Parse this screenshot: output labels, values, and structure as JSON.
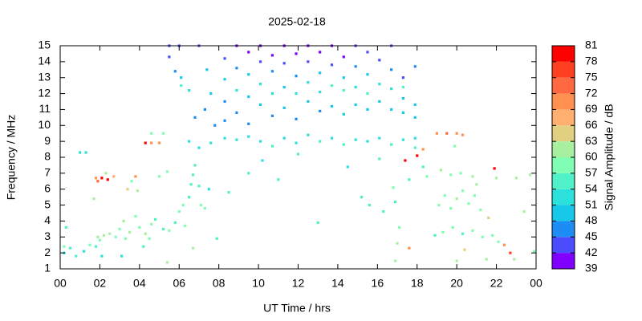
{
  "chart_data": {
    "type": "scatter",
    "title": "2025-02-18",
    "x_label": "UT Time / hrs",
    "y_label": "Frequency / MHz",
    "colorbar_label": "Signal Amplitude / dB",
    "xlim": [
      0,
      24
    ],
    "xticks": [
      {
        "value": 0,
        "label": "00"
      },
      {
        "value": 2,
        "label": "02"
      },
      {
        "value": 4,
        "label": "04"
      },
      {
        "value": 6,
        "label": "06"
      },
      {
        "value": 8,
        "label": "08"
      },
      10,
      12,
      14,
      16,
      18,
      20,
      22,
      {
        "value": 24,
        "label": "00"
      }
    ],
    "ylim": [
      1,
      15
    ],
    "yticks": [
      1,
      2,
      3,
      4,
      5,
      6,
      7,
      8,
      9,
      10,
      11,
      12,
      13,
      14,
      15
    ],
    "clim": [
      39,
      81
    ],
    "cticks": [
      39,
      42,
      45,
      48,
      51,
      54,
      57,
      60,
      63,
      66,
      69,
      72,
      75,
      78,
      81
    ],
    "colors": [
      "#8000ff",
      "#4c4cff",
      "#1e8cf5",
      "#18c8e8",
      "#2ce0dc",
      "#50f0c8",
      "#80ffb4",
      "#a8f0a0",
      "#e0d080",
      "#ffb070",
      "#ff9050",
      "#ff6840",
      "#ff4020",
      "#ff0000"
    ],
    "x": [
      0.2,
      0.5,
      0.8,
      1.2,
      1.5,
      1.8,
      1.9,
      2.2,
      2.5,
      2.8,
      3.0,
      3.2,
      3.5,
      3.8,
      4.0,
      4.3,
      4.6,
      4.8,
      5.2,
      5.5,
      5.8,
      2.0,
      3.3,
      4.5,
      0.3,
      0.2,
      2.1,
      3.1,
      4.2,
      5.4,
      1.8,
      2.1,
      2.4,
      2.7,
      1.9,
      3.4,
      3.6,
      3.8,
      1.0,
      1.3,
      4.3,
      4.6,
      5.0,
      4.6,
      5.2,
      5.0,
      5.4,
      2.3,
      1.7,
      3.9,
      6.0,
      6.2,
      6.5,
      6.6,
      6.7,
      6.8,
      7.0,
      7.1,
      7.3,
      7.5,
      7.6,
      7.0,
      6.5,
      6.3,
      6.7,
      7.9,
      6.1,
      5.8,
      5.5,
      6.1,
      5.5,
      6.0,
      7.0,
      7.6,
      7.3,
      7.8,
      7.4,
      6.8,
      6.5,
      8.3,
      8.3,
      8.3,
      8.3,
      8.3,
      8.9,
      8.9,
      8.9,
      8.9,
      8.9,
      9.5,
      9.5,
      9.5,
      9.5,
      9.5,
      10.1,
      10.1,
      10.1,
      10.1,
      10.1,
      10.7,
      10.7,
      10.7,
      10.7,
      10.7,
      11.3,
      11.3,
      11.3,
      11.3,
      11.3,
      11.9,
      11.9,
      11.9,
      11.9,
      11.9,
      12.5,
      12.5,
      12.5,
      12.5,
      12.5,
      13.1,
      13.1,
      13.1,
      13.1,
      13.1,
      13.7,
      13.7,
      13.7,
      13.7,
      13.7,
      14.3,
      14.3,
      14.3,
      14.3,
      14.3,
      14.9,
      14.9,
      14.9,
      14.9,
      14.9,
      15.5,
      15.5,
      15.5,
      15.5,
      15.5,
      16.1,
      16.1,
      16.1,
      16.1,
      16.1,
      16.7,
      16.7,
      16.7,
      16.7,
      16.7,
      17.3,
      17.3,
      17.3,
      17.3,
      17.3,
      17.9,
      17.9,
      17.9,
      17.9,
      17.9,
      8.5,
      9.5,
      10.2,
      11.0,
      12.0,
      13.0,
      14.5,
      15.2,
      15.6,
      16.3,
      16.9,
      17.1,
      17.0,
      16.9,
      17.6,
      17.4,
      18.0,
      18.3,
      16.8,
      17.6,
      19.1,
      19.4,
      19.7,
      20.0,
      20.3,
      20.6,
      20.9,
      21.2,
      19.0,
      19.5,
      20.0,
      20.3,
      19.2,
      19.7,
      20.2,
      20.8,
      21.0,
      19.3,
      19.8,
      20.3,
      20.8,
      21.3,
      21.8,
      22.1,
      18.9,
      19.9,
      18.5,
      21.6,
      21.9,
      22.0,
      22.4,
      22.7,
      23.0,
      23.4,
      23.7,
      23.9,
      22.9,
      21.5,
      20.4,
      18.3,
      20.0
    ],
    "y": [
      2.4,
      2.3,
      1.8,
      2.1,
      2.5,
      2.4,
      3.0,
      3.1,
      3.2,
      3.0,
      3.5,
      4.0,
      3.3,
      4.3,
      3.6,
      3.2,
      3.8,
      4.1,
      3.5,
      3.4,
      3.9,
      2.8,
      2.9,
      2.9,
      3.6,
      2.0,
      1.8,
      1.8,
      2.4,
      1.4,
      6.7,
      6.7,
      6.6,
      6.8,
      6.5,
      6.0,
      6.5,
      6.8,
      8.3,
      8.3,
      8.9,
      8.9,
      8.9,
      9.5,
      9.5,
      6.8,
      7.1,
      7.0,
      5.4,
      5.9,
      4.6,
      5.0,
      5.5,
      6.3,
      6.9,
      7.5,
      6.2,
      5.0,
      4.8,
      6.0,
      8.9,
      8.6,
      9.0,
      3.7,
      2.3,
      2.9,
      13.0,
      13.4,
      14.3,
      12.5,
      15.0,
      15.0,
      15.0,
      12.0,
      11.0,
      10.0,
      13.5,
      10.5,
      12.2,
      14.2,
      12.9,
      11.5,
      9.2,
      10.3,
      15.0,
      13.6,
      12.2,
      10.8,
      9.1,
      14.6,
      13.2,
      11.8,
      10.1,
      9.3,
      15.0,
      14.0,
      12.6,
      11.3,
      9.0,
      14.4,
      13.4,
      12.0,
      10.6,
      8.7,
      15.0,
      13.9,
      12.4,
      11.1,
      9.2,
      14.5,
      13.1,
      12.0,
      10.4,
      8.9,
      15.0,
      14.0,
      12.7,
      11.5,
      9.4,
      14.6,
      13.3,
      12.1,
      10.9,
      9.0,
      15.0,
      13.8,
      12.5,
      11.2,
      9.2,
      14.3,
      13.0,
      12.2,
      10.7,
      8.8,
      15.0,
      13.7,
      12.4,
      11.3,
      9.1,
      14.6,
      13.2,
      12.0,
      11.0,
      9.0,
      14.1,
      12.6,
      11.5,
      9.2,
      7.9,
      13.5,
      12.3,
      11.0,
      8.8,
      15.0,
      13.0,
      11.7,
      10.8,
      9.1,
      12.4,
      13.7,
      11.3,
      10.5,
      9.2,
      8.6,
      5.8,
      7.0,
      7.8,
      6.6,
      8.2,
      3.9,
      7.4,
      5.5,
      5.0,
      4.6,
      5.2,
      3.6,
      2.6,
      1.5,
      2.3,
      7.8,
      8.1,
      8.5,
      6.1,
      6.6,
      5.0,
      5.6,
      4.8,
      5.4,
      5.9,
      5.1,
      5.6,
      4.7,
      9.5,
      9.5,
      9.5,
      9.4,
      7.2,
      6.9,
      7.0,
      6.8,
      6.3,
      3.3,
      3.6,
      3.2,
      3.4,
      3.0,
      3.1,
      2.7,
      3.1,
      8.7,
      6.8,
      4.2,
      7.3,
      6.7,
      2.5,
      2.0,
      6.7,
      4.6,
      6.9,
      2.1,
      1.6,
      1.6,
      2.2,
      7.4,
      1.5
    ],
    "values": [
      57,
      54,
      54,
      51,
      57,
      54,
      60,
      60,
      60,
      57,
      57,
      60,
      60,
      57,
      57,
      60,
      57,
      54,
      54,
      57,
      54,
      57,
      57,
      57,
      54,
      51,
      51,
      51,
      54,
      60,
      69,
      78,
      78,
      66,
      72,
      63,
      57,
      69,
      51,
      51,
      78,
      69,
      69,
      57,
      57,
      57,
      57,
      60,
      60,
      60,
      57,
      57,
      54,
      54,
      54,
      54,
      54,
      57,
      57,
      51,
      51,
      51,
      51,
      57,
      60,
      54,
      48,
      45,
      42,
      54,
      42,
      42,
      42,
      48,
      45,
      45,
      48,
      45,
      51,
      42,
      48,
      45,
      51,
      45,
      39,
      45,
      51,
      45,
      51,
      39,
      48,
      48,
      45,
      51,
      39,
      42,
      51,
      48,
      51,
      39,
      45,
      51,
      45,
      54,
      39,
      42,
      48,
      48,
      51,
      39,
      45,
      51,
      45,
      51,
      39,
      42,
      51,
      48,
      51,
      39,
      48,
      51,
      45,
      54,
      39,
      42,
      54,
      48,
      51,
      39,
      48,
      54,
      48,
      54,
      42,
      45,
      51,
      48,
      51,
      42,
      48,
      54,
      48,
      51,
      42,
      51,
      48,
      51,
      54,
      45,
      51,
      48,
      54,
      42,
      42,
      48,
      48,
      51,
      54,
      45,
      48,
      48,
      51,
      54,
      54,
      54,
      51,
      54,
      54,
      54,
      51,
      54,
      54,
      54,
      54,
      57,
      60,
      60,
      69,
      81,
      81,
      69,
      57,
      54,
      57,
      57,
      57,
      60,
      57,
      57,
      57,
      57,
      69,
      72,
      69,
      69,
      60,
      57,
      57,
      60,
      60,
      57,
      57,
      54,
      57,
      57,
      57,
      57,
      54,
      57,
      57,
      63,
      78,
      60,
      69,
      75,
      60,
      60,
      60,
      57,
      60,
      60,
      63,
      54,
      60
    ]
  }
}
